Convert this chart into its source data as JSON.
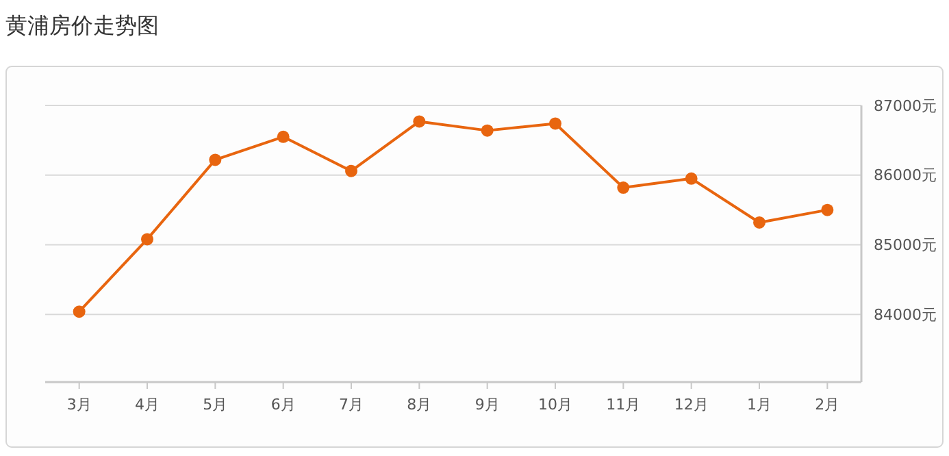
{
  "chart_data": {
    "type": "line",
    "title": "黄浦房价走势图",
    "categories": [
      "3月",
      "4月",
      "5月",
      "6月",
      "7月",
      "8月",
      "9月",
      "10月",
      "11月",
      "12月",
      "1月",
      "2月"
    ],
    "series": [
      {
        "color": "#e8650f",
        "values": [
          84040,
          85080,
          86220,
          86550,
          86060,
          86770,
          86640,
          86740,
          85820,
          85950,
          85320,
          85500
        ]
      }
    ],
    "ylim": [
      83030,
      87000
    ],
    "yticks": [
      {
        "value": 84000,
        "label": "84000元"
      },
      {
        "value": 85000,
        "label": "85000元"
      },
      {
        "value": 86000,
        "label": "86000元"
      },
      {
        "value": 87000,
        "label": "87000元"
      }
    ],
    "grid": "y",
    "marker": "circle"
  }
}
